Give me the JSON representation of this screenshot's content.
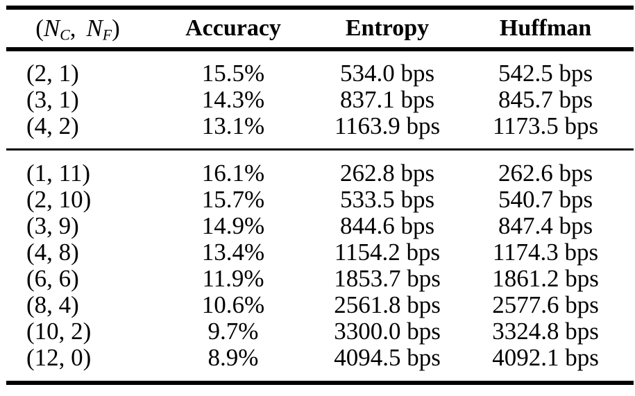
{
  "colors": {
    "text": "#000000",
    "background": "#ffffff",
    "rule": "#000000"
  },
  "table": {
    "header": {
      "config": {
        "open": "(",
        "var1": "N",
        "sub1": "C",
        "sep": ", ",
        "var2": "N",
        "sub2": "F",
        "close": ")"
      },
      "accuracy": "Accuracy",
      "entropy": "Entropy",
      "huffman": "Huffman"
    },
    "section1": {
      "rows": [
        {
          "config": "(2, 1)",
          "accuracy": "15.5%",
          "entropy": "534.0 bps",
          "huffman": "542.5 bps"
        },
        {
          "config": "(3, 1)",
          "accuracy": "14.3%",
          "entropy": "837.1 bps",
          "huffman": "845.7 bps"
        },
        {
          "config": "(4, 2)",
          "accuracy": "13.1%",
          "entropy": "1163.9 bps",
          "huffman": "1173.5 bps"
        }
      ]
    },
    "section2": {
      "rows": [
        {
          "config": "(1, 11)",
          "accuracy": "16.1%",
          "entropy": "262.8 bps",
          "huffman": "262.6 bps"
        },
        {
          "config": "(2, 10)",
          "accuracy": "15.7%",
          "entropy": "533.5 bps",
          "huffman": "540.7 bps"
        },
        {
          "config": "(3, 9)",
          "accuracy": "14.9%",
          "entropy": "844.6 bps",
          "huffman": "847.4 bps"
        },
        {
          "config": "(4, 8)",
          "accuracy": "13.4%",
          "entropy": "1154.2 bps",
          "huffman": "1174.3 bps"
        },
        {
          "config": "(6, 6)",
          "accuracy": "11.9%",
          "entropy": "1853.7 bps",
          "huffman": "1861.2 bps"
        },
        {
          "config": "(8, 4)",
          "accuracy": "10.6%",
          "entropy": "2561.8 bps",
          "huffman": "2577.6 bps"
        },
        {
          "config": "(10, 2)",
          "accuracy": "9.7%",
          "entropy": "3300.0 bps",
          "huffman": "3324.8 bps"
        },
        {
          "config": "(12, 0)",
          "accuracy": "8.9%",
          "entropy": "4094.5 bps",
          "huffman": "4092.1 bps"
        }
      ]
    }
  },
  "chart_data": {
    "type": "table",
    "columns": [
      "(N_C, N_F)",
      "Accuracy",
      "Entropy",
      "Huffman"
    ],
    "rows": [
      [
        "(2, 1)",
        "15.5%",
        "534.0 bps",
        "542.5 bps"
      ],
      [
        "(3, 1)",
        "14.3%",
        "837.1 bps",
        "845.7 bps"
      ],
      [
        "(4, 2)",
        "13.1%",
        "1163.9 bps",
        "1173.5 bps"
      ],
      [
        "(1, 11)",
        "16.1%",
        "262.8 bps",
        "262.6 bps"
      ],
      [
        "(2, 10)",
        "15.7%",
        "533.5 bps",
        "540.7 bps"
      ],
      [
        "(3, 9)",
        "14.9%",
        "844.6 bps",
        "847.4 bps"
      ],
      [
        "(4, 8)",
        "13.4%",
        "1154.2 bps",
        "1174.3 bps"
      ],
      [
        "(6, 6)",
        "11.9%",
        "1853.7 bps",
        "1861.2 bps"
      ],
      [
        "(8, 4)",
        "10.6%",
        "2561.8 bps",
        "2577.6 bps"
      ],
      [
        "(10, 2)",
        "9.7%",
        "3300.0 bps",
        "3324.8 bps"
      ],
      [
        "(12, 0)",
        "8.9%",
        "4094.5 bps",
        "4092.1 bps"
      ]
    ]
  }
}
